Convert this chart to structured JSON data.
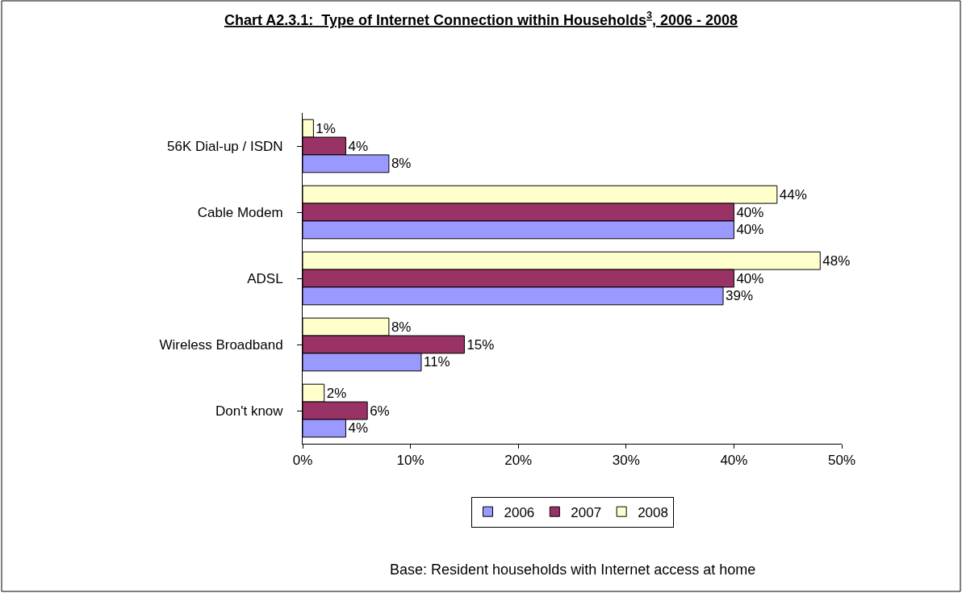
{
  "chart_data": {
    "type": "bar",
    "orientation": "horizontal",
    "title": "Chart A2.3.1:  Type of Internet Connection within Households$^{3}$, 2006 - 2008",
    "categories": [
      "56K Dial-up / ISDN",
      "Cable Modem",
      "ADSL",
      "Wireless Broadband",
      "Don't know"
    ],
    "series": [
      {
        "name": "2006",
        "color": "#9999ff",
        "values": [
          8,
          40,
          39,
          11,
          4
        ],
        "value_labels": [
          "8%",
          "40%",
          "39%",
          "11%",
          "4%"
        ]
      },
      {
        "name": "2007",
        "color": "#993366",
        "values": [
          4,
          40,
          40,
          15,
          6
        ],
        "value_labels": [
          "4%",
          "40%",
          "40%",
          "15%",
          "6%"
        ]
      },
      {
        "name": "2008",
        "color": "#ffffcc",
        "values": [
          1,
          44,
          48,
          8,
          2
        ],
        "value_labels": [
          "1%",
          "44%",
          "48%",
          "8%",
          "2%"
        ]
      }
    ],
    "xlim": [
      0,
      50
    ],
    "xticks": [
      {
        "value": 0,
        "label": "0%"
      },
      {
        "value": 10,
        "label": "10%"
      },
      {
        "value": 20,
        "label": "20%"
      },
      {
        "value": 30,
        "label": "30%"
      },
      {
        "value": 40,
        "label": "40%"
      },
      {
        "value": 50,
        "label": "50%"
      }
    ],
    "legend": "bottom",
    "annotations": [
      "Base: Resident households with Internet access at home"
    ]
  }
}
